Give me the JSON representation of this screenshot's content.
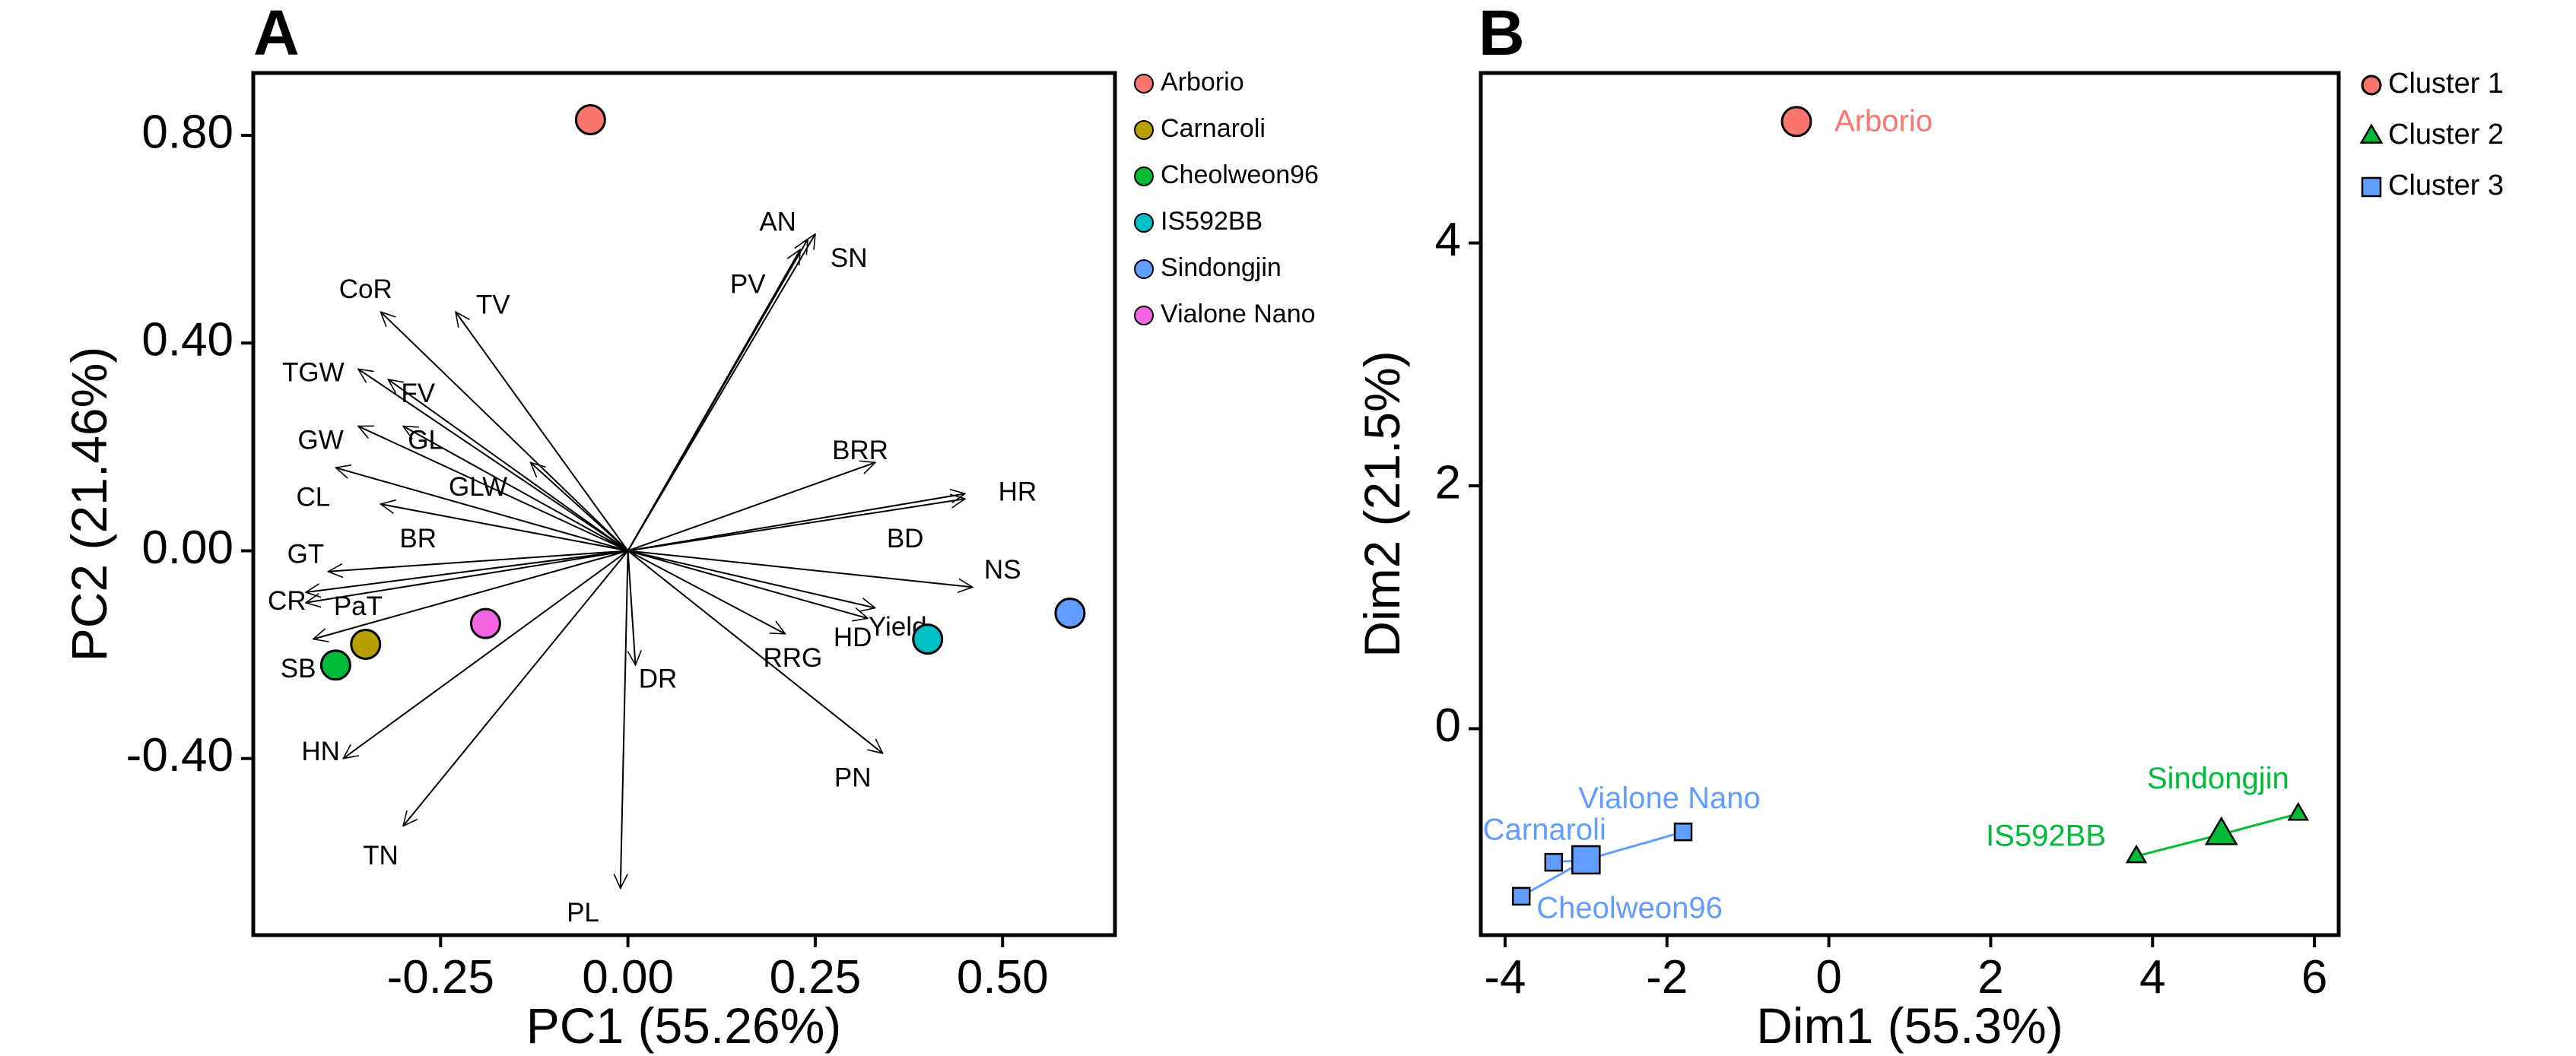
{
  "chart_data": [
    {
      "type": "scatter",
      "panel": "A",
      "xlabel": "PC1 (55.26%)",
      "ylabel": "PC2 (21.46%)",
      "xlim": [
        -0.5,
        0.65
      ],
      "ylim": [
        -0.74,
        0.92
      ],
      "xticks": [
        {
          "v": -0.25,
          "label": "-0.25"
        },
        {
          "v": 0,
          "label": "0.00"
        },
        {
          "v": 0.25,
          "label": "0.25"
        },
        {
          "v": 0.5,
          "label": "0.50"
        }
      ],
      "yticks": [
        {
          "v": -0.4,
          "label": "-0.40"
        },
        {
          "v": 0,
          "label": "0.00"
        },
        {
          "v": 0.4,
          "label": "0.40"
        },
        {
          "v": 0.8,
          "label": "0.80"
        }
      ],
      "grid": false,
      "legend_position": "outside-right",
      "legend": [
        {
          "name": "Arborio",
          "color": "#F8766D"
        },
        {
          "name": "Carnaroli",
          "color": "#B79F00"
        },
        {
          "name": "Cheolweon96",
          "color": "#00BA38"
        },
        {
          "name": "IS592BB",
          "color": "#00BFC4"
        },
        {
          "name": "Sindongjin",
          "color": "#619CFF"
        },
        {
          "name": "Vialone Nano",
          "color": "#F564E3"
        }
      ],
      "points": [
        {
          "name": "Arborio",
          "x": -0.05,
          "y": 0.83,
          "color": "#F8766D"
        },
        {
          "name": "Carnaroli",
          "x": -0.35,
          "y": -0.18,
          "color": "#B79F00"
        },
        {
          "name": "Cheolweon96",
          "x": -0.39,
          "y": -0.22,
          "color": "#00BA38"
        },
        {
          "name": "IS592BB",
          "x": 0.4,
          "y": -0.17,
          "color": "#00BFC4"
        },
        {
          "name": "Sindongjin",
          "x": 0.59,
          "y": -0.12,
          "color": "#619CFF"
        },
        {
          "name": "Vialone Nano",
          "x": -0.19,
          "y": -0.14,
          "color": "#F564E3"
        }
      ],
      "vectors": [
        {
          "label": "AN",
          "x": 0.25,
          "y": 0.61,
          "lx": 0.2,
          "ly": 0.63
        },
        {
          "label": "SN",
          "x": 0.24,
          "y": 0.6,
          "lx": 0.295,
          "ly": 0.56
        },
        {
          "label": "PV",
          "x": 0.23,
          "y": 0.58,
          "lx": 0.16,
          "ly": 0.51
        },
        {
          "label": "CoR",
          "x": -0.33,
          "y": 0.46,
          "lx": -0.35,
          "ly": 0.5
        },
        {
          "label": "TV",
          "x": -0.23,
          "y": 0.46,
          "lx": -0.18,
          "ly": 0.47
        },
        {
          "label": "TGW",
          "x": -0.36,
          "y": 0.35,
          "lx": -0.42,
          "ly": 0.34
        },
        {
          "label": "FV",
          "x": -0.32,
          "y": 0.33,
          "lx": -0.28,
          "ly": 0.3
        },
        {
          "label": "GW",
          "x": -0.36,
          "y": 0.24,
          "lx": -0.41,
          "ly": 0.21
        },
        {
          "label": "GL",
          "x": -0.3,
          "y": 0.24,
          "lx": -0.27,
          "ly": 0.21
        },
        {
          "label": "GLW",
          "x": -0.13,
          "y": 0.17,
          "lx": -0.2,
          "ly": 0.12
        },
        {
          "label": "CL",
          "x": -0.39,
          "y": 0.16,
          "lx": -0.42,
          "ly": 0.1
        },
        {
          "label": "BR",
          "x": -0.33,
          "y": 0.09,
          "lx": -0.28,
          "ly": 0.02
        },
        {
          "label": "GT",
          "x": -0.4,
          "y": -0.04,
          "lx": -0.43,
          "ly": -0.01
        },
        {
          "label": "CR",
          "x": -0.43,
          "y": -0.08,
          "lx": -0.455,
          "ly": -0.1
        },
        {
          "label": "PaT",
          "x": -0.43,
          "y": -0.1,
          "lx": -0.36,
          "ly": -0.11
        },
        {
          "label": "SB",
          "x": -0.42,
          "y": -0.17,
          "lx": -0.44,
          "ly": -0.23
        },
        {
          "label": "HN",
          "x": -0.38,
          "y": -0.4,
          "lx": -0.41,
          "ly": -0.39
        },
        {
          "label": "TN",
          "x": -0.3,
          "y": -0.53,
          "lx": -0.33,
          "ly": -0.59
        },
        {
          "label": "PL",
          "x": -0.01,
          "y": -0.65,
          "lx": -0.06,
          "ly": -0.7
        },
        {
          "label": "DR",
          "x": 0.01,
          "y": -0.22,
          "lx": 0.04,
          "ly": -0.25
        },
        {
          "label": "RRG",
          "x": 0.21,
          "y": -0.16,
          "lx": 0.22,
          "ly": -0.21
        },
        {
          "label": "HD",
          "x": 0.32,
          "y": -0.13,
          "lx": 0.3,
          "ly": -0.17
        },
        {
          "label": "Yield",
          "x": 0.33,
          "y": -0.11,
          "lx": 0.36,
          "ly": -0.15
        },
        {
          "label": "PN",
          "x": 0.34,
          "y": -0.39,
          "lx": 0.3,
          "ly": -0.44
        },
        {
          "label": "NS",
          "x": 0.46,
          "y": -0.07,
          "lx": 0.5,
          "ly": -0.04
        },
        {
          "label": "BD",
          "x": 0.45,
          "y": 0.1,
          "lx": 0.37,
          "ly": 0.02
        },
        {
          "label": "HR",
          "x": 0.45,
          "y": 0.11,
          "lx": 0.52,
          "ly": 0.11
        },
        {
          "label": "BRR",
          "x": 0.33,
          "y": 0.17,
          "lx": 0.31,
          "ly": 0.19
        }
      ]
    },
    {
      "type": "scatter",
      "panel": "B",
      "xlabel": "Dim1 (55.3%)",
      "ylabel": "Dim2 (21.5%)",
      "xlim": [
        -4.3,
        6.3
      ],
      "ylim": [
        -1.7,
        5.4
      ],
      "xticks": [
        {
          "v": -4,
          "label": "-4"
        },
        {
          "v": -2,
          "label": "-2"
        },
        {
          "v": 0,
          "label": "0"
        },
        {
          "v": 2,
          "label": "2"
        },
        {
          "v": 4,
          "label": "4"
        },
        {
          "v": 6,
          "label": "6"
        }
      ],
      "yticks": [
        {
          "v": 0,
          "label": "0"
        },
        {
          "v": 2,
          "label": "2"
        },
        {
          "v": 4,
          "label": "4"
        }
      ],
      "grid": false,
      "legend_position": "outside-right",
      "legend": [
        {
          "name": "Cluster 1",
          "color": "#F8766D",
          "shape": "circle"
        },
        {
          "name": "Cluster 2",
          "color": "#00BA38",
          "shape": "triangle"
        },
        {
          "name": "Cluster 3",
          "color": "#619CFF",
          "shape": "square"
        }
      ],
      "points": [
        {
          "name": "Arborio",
          "x": -0.4,
          "y": 5.0,
          "cluster": "Cluster 1"
        },
        {
          "name": "IS592BB",
          "x": 3.8,
          "y": -1.05,
          "cluster": "Cluster 2"
        },
        {
          "name": "Sindongjin",
          "x": 5.8,
          "y": -0.7,
          "cluster": "Cluster 2"
        },
        {
          "name": "Carnaroli",
          "x": -3.4,
          "y": -1.1,
          "cluster": "Cluster 3"
        },
        {
          "name": "Cheolweon96",
          "x": -3.8,
          "y": -1.38,
          "cluster": "Cluster 3"
        },
        {
          "name": "Vialone Nano",
          "x": -1.8,
          "y": -0.85,
          "cluster": "Cluster 3"
        }
      ],
      "centroids": [
        {
          "cluster": "Cluster 1",
          "x": -0.4,
          "y": 5.0
        },
        {
          "cluster": "Cluster 2",
          "x": 4.85,
          "y": -0.87
        },
        {
          "cluster": "Cluster 3",
          "x": -3.0,
          "y": -1.08
        }
      ]
    }
  ]
}
